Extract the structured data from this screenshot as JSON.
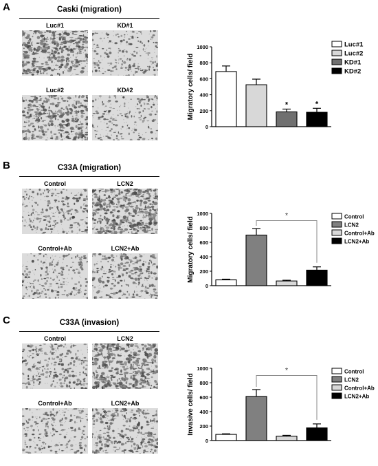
{
  "panels": [
    {
      "letter": "A",
      "title": "Caski (migration)",
      "micrographs": [
        {
          "label": "Luc#1",
          "density": 0.85
        },
        {
          "label": "KD#1",
          "density": 0.3
        },
        {
          "label": "Luc#2",
          "density": 0.8
        },
        {
          "label": "KD#2",
          "density": 0.3
        }
      ]
    },
    {
      "letter": "B",
      "title": "C33A (migration)",
      "micrographs": [
        {
          "label": "Control",
          "density": 0.4
        },
        {
          "label": "LCN2",
          "density": 0.95
        },
        {
          "label": "Control+Ab",
          "density": 0.35
        },
        {
          "label": "LCN2+Ab",
          "density": 0.5
        }
      ]
    },
    {
      "letter": "C",
      "title": "C33A (invasion)",
      "micrographs": [
        {
          "label": "Control",
          "density": 0.45
        },
        {
          "label": "LCN2",
          "density": 0.9
        },
        {
          "label": "Control+Ab",
          "density": 0.35
        },
        {
          "label": "LCN2+Ab",
          "density": 0.6
        }
      ]
    }
  ],
  "chart_data": [
    {
      "type": "bar",
      "ylabel": "Migratory cells/ field",
      "ylim": [
        0,
        1000
      ],
      "yticks": [
        "0",
        "200",
        "400",
        "600",
        "800",
        "1000"
      ],
      "categories": [
        "Luc#1",
        "Luc#2",
        "KD#1",
        "KD#2"
      ],
      "values": [
        690,
        525,
        185,
        180
      ],
      "errors": [
        70,
        70,
        35,
        50
      ],
      "colors": [
        "#ffffff",
        "#d8d8d8",
        "#707070",
        "#000000"
      ],
      "significance": [
        "",
        "",
        "*",
        "*"
      ],
      "legend": [
        "Luc#1",
        "Luc#2",
        "KD#1",
        "KD#2"
      ],
      "bracket": null
    },
    {
      "type": "bar",
      "ylabel": "Migratory cells/ field",
      "ylim": [
        0,
        1000
      ],
      "yticks": [
        "0",
        "200",
        "400",
        "600",
        "800",
        "1000"
      ],
      "categories": [
        "Control",
        "LCN2",
        "Control+Ab",
        "LCN2+Ab"
      ],
      "values": [
        80,
        700,
        65,
        215
      ],
      "errors": [
        10,
        90,
        10,
        45
      ],
      "colors": [
        "#ffffff",
        "#808080",
        "#d8d8d8",
        "#000000"
      ],
      "significance": [
        "",
        "",
        "",
        ""
      ],
      "legend": [
        "Control",
        "LCN2",
        "Control+Ab",
        "LCN2+Ab"
      ],
      "bracket": {
        "from": 1,
        "to": 3,
        "label": "*",
        "y": 900
      }
    },
    {
      "type": "bar",
      "ylabel": "Invasive cells/ field",
      "ylim": [
        0,
        1000
      ],
      "yticks": [
        "0",
        "200",
        "400",
        "600",
        "800",
        "1000"
      ],
      "categories": [
        "Control",
        "LCN2",
        "Control+Ab",
        "LCN2+Ab"
      ],
      "values": [
        85,
        610,
        60,
        175
      ],
      "errors": [
        8,
        95,
        12,
        55
      ],
      "colors": [
        "#ffffff",
        "#808080",
        "#d8d8d8",
        "#000000"
      ],
      "significance": [
        "",
        "",
        "",
        ""
      ],
      "legend": [
        "Control",
        "LCN2",
        "Control+Ab",
        "LCN2+Ab"
      ],
      "bracket": {
        "from": 1,
        "to": 3,
        "label": "*",
        "y": 900
      }
    }
  ]
}
